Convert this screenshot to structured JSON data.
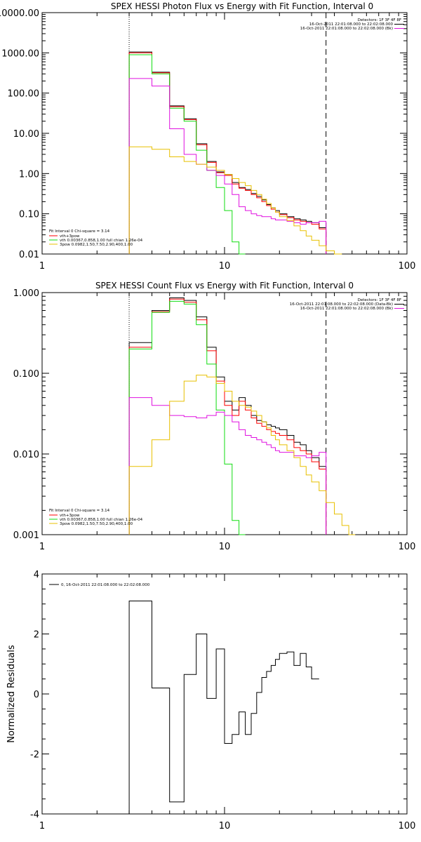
{
  "colors": {
    "black": "#000000",
    "red": "#ff0000",
    "green": "#11dd11",
    "magenta": "#e010e0",
    "yellow": "#e8c000"
  },
  "chart_data": [
    {
      "type": "line",
      "title": "SPEX HESSI Photon Flux vs Energy with Fit Function, Interval 0",
      "xlabel": "",
      "ylabel": "",
      "xscale": "log",
      "yscale": "log",
      "xlim": [
        1,
        100
      ],
      "ylim": [
        0.01,
        10000
      ],
      "x_tick_labels": [
        "1",
        "10",
        "100"
      ],
      "y_tick_labels": [
        "0.01",
        "0.10",
        "1.00",
        "10.00",
        "100.00",
        "1000.00",
        "10000.00"
      ],
      "y_tick_values": [
        0.01,
        0.1,
        1,
        10,
        100,
        1000,
        10000
      ],
      "x_tick_values": [
        1,
        10,
        100
      ],
      "vlines": [
        {
          "x": 3,
          "style": "dotted"
        },
        {
          "x": 36,
          "style": "dashed"
        }
      ],
      "x_edges": [
        3,
        4,
        5,
        6,
        7,
        8,
        9,
        10,
        11,
        12,
        13,
        14,
        15,
        16,
        17,
        18,
        19,
        20,
        22,
        24,
        26,
        28,
        30,
        33,
        36,
        40,
        44
      ],
      "series": [
        {
          "name": "",
          "color": "#000000",
          "values": [
            1050,
            330,
            48,
            23,
            5.5,
            2.0,
            1.1,
            0.95,
            0.6,
            0.45,
            0.4,
            0.32,
            0.27,
            0.22,
            0.17,
            0.14,
            0.12,
            0.1,
            0.085,
            0.075,
            0.07,
            0.065,
            0.06,
            0.045
          ]
        },
        {
          "name": "",
          "color": "#ff0000",
          "values": [
            1000,
            320,
            46,
            22,
            5.2,
            1.9,
            1.05,
            0.9,
            0.55,
            0.43,
            0.38,
            0.3,
            0.25,
            0.2,
            0.16,
            0.13,
            0.11,
            0.095,
            0.08,
            0.07,
            0.065,
            0.06,
            0.055,
            0.042
          ]
        },
        {
          "name": "",
          "color": "#11dd11",
          "values": [
            900,
            300,
            42,
            20,
            3.8,
            1.2,
            0.45,
            0.12,
            0.02,
            0.01
          ]
        },
        {
          "name": "",
          "color": "#e010e0",
          "values": [
            230,
            150,
            13,
            3.0,
            1.7,
            1.2,
            0.9,
            0.55,
            0.3,
            0.15,
            0.12,
            0.1,
            0.09,
            0.085,
            0.085,
            0.075,
            0.07,
            0.07,
            0.065,
            0.06,
            0.055,
            0.06,
            0.06,
            0.065
          ]
        },
        {
          "name": "",
          "color": "#e8c000",
          "values": [
            4.6,
            4.0,
            2.6,
            2.0,
            1.7,
            1.45,
            1.2,
            0.95,
            0.75,
            0.6,
            0.5,
            0.38,
            0.3,
            0.23,
            0.18,
            0.14,
            0.11,
            0.085,
            0.068,
            0.05,
            0.038,
            0.028,
            0.022,
            0.016,
            0.012,
            0.01
          ]
        }
      ],
      "info_top": [
        "Detectors: 1F 3F 4F 8F",
        "16-Oct-2011 22:01:08.000 to 22:02:08.000",
        "16-Oct-2011 22:01:08.000 to 22:02:08.000 (Bk)"
      ],
      "info_bottom": [
        "Fit Interval 0   Chi-square = 3.14",
        "vth+3pow",
        "vth 0.00367,0.858,1.00  full chian 1.26e-04",
        "3pow 0.0982,1.50,7.50,2.90,400,1.00"
      ]
    },
    {
      "type": "line",
      "title": "SPEX HESSI Count Flux vs Energy with Fit Function, Interval 0",
      "xlabel": "",
      "ylabel": "",
      "xscale": "log",
      "yscale": "log",
      "xlim": [
        1,
        100
      ],
      "ylim": [
        0.001,
        1.0
      ],
      "x_tick_labels": [
        "1",
        "10",
        "100"
      ],
      "y_tick_labels": [
        "0.001",
        "0.010",
        "0.100",
        "1.000"
      ],
      "y_tick_values": [
        0.001,
        0.01,
        0.1,
        1.0
      ],
      "x_tick_values": [
        1,
        10,
        100
      ],
      "vlines": [
        {
          "x": 3,
          "style": "dotted"
        },
        {
          "x": 36,
          "style": "dashed"
        }
      ],
      "x_edges": [
        3,
        4,
        5,
        6,
        7,
        8,
        9,
        10,
        11,
        12,
        13,
        14,
        15,
        16,
        17,
        18,
        19,
        20,
        22,
        24,
        26,
        28,
        30,
        33,
        36,
        40,
        44,
        48,
        52
      ],
      "series": [
        {
          "name": "",
          "color": "#000000",
          "values": [
            0.24,
            0.6,
            0.86,
            0.8,
            0.5,
            0.21,
            0.09,
            0.045,
            0.035,
            0.05,
            0.04,
            0.03,
            0.026,
            0.025,
            0.023,
            0.022,
            0.021,
            0.02,
            0.017,
            0.014,
            0.013,
            0.011,
            0.009,
            0.007
          ]
        },
        {
          "name": "",
          "color": "#ff0000",
          "values": [
            0.21,
            0.58,
            0.83,
            0.76,
            0.46,
            0.19,
            0.08,
            0.04,
            0.03,
            0.045,
            0.035,
            0.028,
            0.024,
            0.022,
            0.02,
            0.019,
            0.018,
            0.017,
            0.015,
            0.012,
            0.011,
            0.01,
            0.008,
            0.0065
          ]
        },
        {
          "name": "",
          "color": "#11dd11",
          "values": [
            0.2,
            0.57,
            0.78,
            0.72,
            0.4,
            0.13,
            0.035,
            0.0075,
            0.0015,
            0.0008
          ]
        },
        {
          "name": "",
          "color": "#e010e0",
          "values": [
            0.05,
            0.04,
            0.03,
            0.029,
            0.028,
            0.03,
            0.033,
            0.03,
            0.025,
            0.02,
            0.017,
            0.016,
            0.015,
            0.014,
            0.013,
            0.012,
            0.011,
            0.0105,
            0.0105,
            0.0095,
            0.0095,
            0.009,
            0.0095,
            0.0105
          ]
        },
        {
          "name": "",
          "color": "#e8c000",
          "values": [
            0.007,
            0.015,
            0.045,
            0.08,
            0.095,
            0.09,
            0.075,
            0.06,
            0.045,
            0.04,
            0.038,
            0.034,
            0.03,
            0.025,
            0.021,
            0.017,
            0.015,
            0.013,
            0.011,
            0.009,
            0.007,
            0.0055,
            0.0045,
            0.0035,
            0.0025,
            0.0018,
            0.0013,
            0.001
          ]
        }
      ],
      "info_top": [
        "Detectors: 1F 3F 4F 8F",
        "16-Oct-2011 22:01:08.000 to 22:02:08.000 (Data-Bk)",
        "16-Oct-2011 22:01:08.000 to 22:02:08.000 (Bk)"
      ],
      "info_bottom": [
        "Fit Interval 0   Chi-square = 3.14",
        "vth+3pow",
        "vth 0.00367,0.858,1.00  full chian 1.26e-04",
        "3pow 0.0982,1.50,7.50,2.90,400,1.00"
      ]
    },
    {
      "type": "line",
      "title": "",
      "xlabel": "",
      "ylabel": "Normalized  Residuals",
      "xscale": "log",
      "yscale": "linear",
      "xlim": [
        1,
        100
      ],
      "ylim": [
        -4,
        4
      ],
      "x_tick_labels": [
        "1",
        "10",
        "100"
      ],
      "y_tick_labels": [
        "-4",
        "-2",
        "0",
        "2",
        "4"
      ],
      "y_tick_values": [
        -4,
        -2,
        0,
        2,
        4
      ],
      "x_tick_values": [
        1,
        10,
        100
      ],
      "x_edges": [
        3,
        4,
        5,
        6,
        7,
        8,
        9,
        10,
        11,
        12,
        13,
        14,
        15,
        16,
        17,
        18,
        19,
        20,
        22,
        24,
        26,
        28,
        30,
        33,
        36
      ],
      "series": [
        {
          "name": "",
          "color": "#000000",
          "values": [
            3.1,
            0.2,
            -3.6,
            0.65,
            2.0,
            -0.15,
            1.5,
            -1.65,
            -1.35,
            -0.6,
            -1.35,
            -0.65,
            0.05,
            0.55,
            0.75,
            0.95,
            1.15,
            1.35,
            1.4,
            0.95,
            1.35,
            0.9,
            0.5
          ]
        }
      ],
      "legend": [
        "0, 16-Oct-2011 22:01:08.000 to 22:02:08.000"
      ]
    }
  ]
}
